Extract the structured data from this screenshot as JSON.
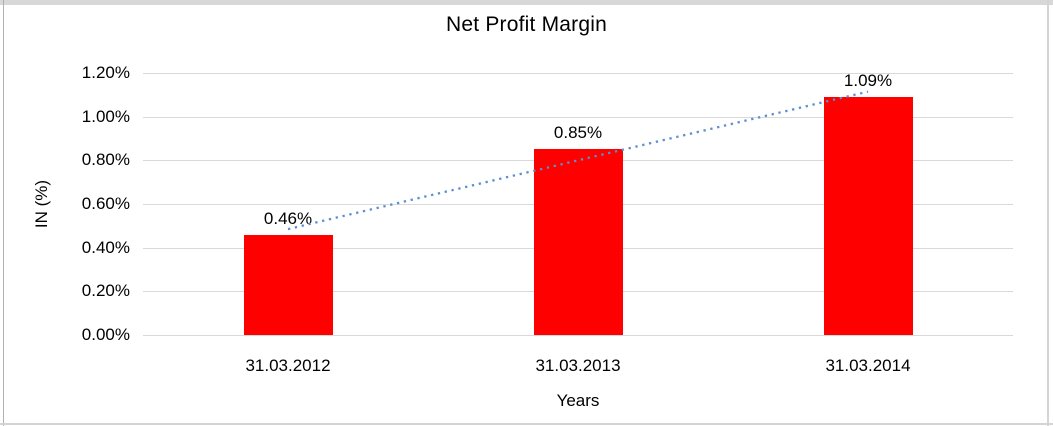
{
  "frame": {
    "background": "#ffffff",
    "top_band_color": "#d8d8d8",
    "side_border_color": "#d4d4d4",
    "left_line_color": "#b0b0b0"
  },
  "chart_data": {
    "type": "bar",
    "title": "Net Profit Margin",
    "xlabel": "Years",
    "ylabel": "IN (%)",
    "categories": [
      "31.03.2012",
      "31.03.2013",
      "31.03.2014"
    ],
    "values": [
      0.46,
      0.85,
      1.09
    ],
    "data_labels": [
      "0.46%",
      "0.85%",
      "1.09%"
    ],
    "ytick_labels": [
      "0.00%",
      "0.20%",
      "0.40%",
      "0.60%",
      "0.80%",
      "1.00%",
      "1.20%"
    ],
    "ytick_values": [
      0,
      0.2,
      0.4,
      0.6,
      0.8,
      1.0,
      1.2
    ],
    "ylim": [
      0,
      1.2
    ],
    "grid": "horizontal",
    "legend_position": "none",
    "bar_color": "#ff0000",
    "gridline_color": "#d9d9d9",
    "trendline": {
      "kind": "linear",
      "line_style": "dotted",
      "color": "#5b8fce"
    }
  }
}
